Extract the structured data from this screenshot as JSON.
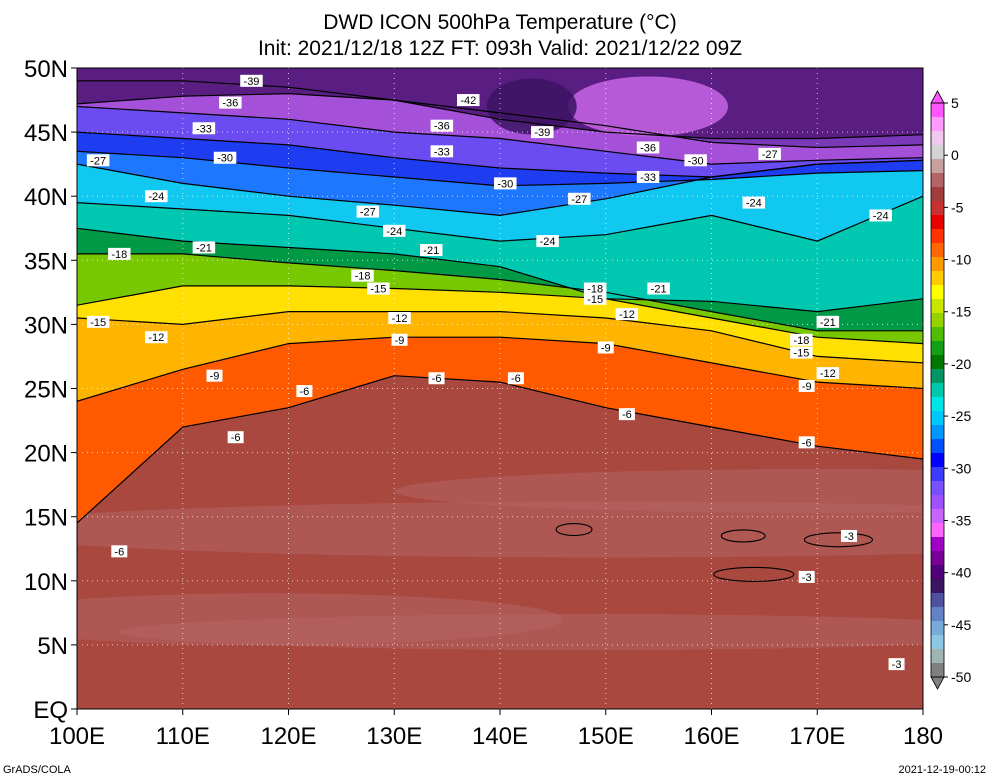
{
  "title_line1": "DWD ICON 500hPa Temperature (°C)",
  "title_line2": "Init: 2021/12/18 12Z  FT: 093h  Valid: 2021/12/22 09Z",
  "footer_left": "GrADS/COLA",
  "footer_right": "2021-12-19-00:12",
  "chart_data": {
    "type": "heatmap",
    "x_axis": {
      "range": [
        100,
        180
      ],
      "ticks": [
        100,
        110,
        120,
        130,
        140,
        150,
        160,
        170,
        180
      ],
      "tick_labels": [
        "100E",
        "110E",
        "120E",
        "130E",
        "140E",
        "150E",
        "160E",
        "170E",
        "180"
      ]
    },
    "y_axis": {
      "range": [
        0,
        50
      ],
      "ticks": [
        0,
        5,
        10,
        15,
        20,
        25,
        30,
        35,
        40,
        45,
        50
      ],
      "tick_labels": [
        "EQ",
        "5N",
        "10N",
        "15N",
        "20N",
        "25N",
        "30N",
        "35N",
        "40N",
        "45N",
        "50N"
      ]
    },
    "grid": true,
    "colorbar": {
      "labels": [
        5,
        0,
        -5,
        -10,
        -15,
        -20,
        -25,
        -30,
        -35,
        -40,
        -45,
        -50
      ],
      "colors": [
        "#ff55ff",
        "#ff9aff",
        "#f0c8f0",
        "#d4d4d4",
        "#c8a0a0",
        "#b46464",
        "#a03c3c",
        "#c83232",
        "#e60000",
        "#ff3300",
        "#ff6600",
        "#ff9900",
        "#ffcc00",
        "#ffff00",
        "#c8e600",
        "#96d200",
        "#50be00",
        "#14a014",
        "#007800",
        "#009664",
        "#00c8aa",
        "#00e6e6",
        "#00c8ff",
        "#0096ff",
        "#0050ff",
        "#0000ff",
        "#3c3cff",
        "#7850ff",
        "#a050ff",
        "#c864ff",
        "#ff64ff",
        "#a000c8",
        "#780096",
        "#500078",
        "#3c1464",
        "#5050a0",
        "#6482c8",
        "#78aadc",
        "#8cc8e6",
        "#a0b4b4",
        "#808080"
      ]
    },
    "isotherms": [
      {
        "value": -42,
        "lats": [
          47.2,
          47.8,
          48.0,
          47.5,
          46.0,
          45.0,
          44.5,
          44.5,
          44.8
        ]
      },
      {
        "value": -39,
        "lats": [
          49.0,
          49.0,
          48.5,
          47.5,
          46.5,
          45.5,
          44.2,
          43.8,
          44.0
        ]
      },
      {
        "value": -36,
        "lats": [
          47.0,
          46.5,
          46.0,
          45.0,
          44.5,
          43.5,
          42.5,
          42.8,
          43.0
        ]
      },
      {
        "value": -33,
        "lats": [
          45.0,
          44.5,
          44.0,
          43.0,
          42.2,
          41.8,
          41.5,
          42.5,
          42.8
        ]
      },
      {
        "value": -30,
        "lats": [
          43.5,
          43.0,
          42.2,
          41.5,
          40.8,
          41.0,
          41.3,
          41.8,
          42.0
        ]
      },
      {
        "value": -27,
        "lats": [
          42.5,
          41.0,
          40.0,
          39.3,
          38.5,
          39.8,
          41.5,
          42.5,
          42.8
        ]
      },
      {
        "value": -24,
        "lats": [
          39.5,
          39.0,
          38.5,
          37.5,
          36.5,
          37.0,
          38.5,
          36.5,
          40.0
        ]
      },
      {
        "value": -21,
        "lats": [
          37.5,
          36.5,
          36.0,
          35.5,
          34.5,
          32.0,
          31.8,
          31.0,
          32.0
        ]
      },
      {
        "value": -18,
        "lats": [
          35.5,
          35.5,
          34.8,
          34.2,
          33.5,
          32.5,
          31.0,
          29.5,
          29.5
        ]
      },
      {
        "value": -15,
        "lats": [
          31.5,
          33.0,
          33.0,
          32.8,
          32.5,
          32.0,
          30.5,
          29.0,
          28.5
        ]
      },
      {
        "value": -12,
        "lats": [
          30.5,
          30.0,
          31.0,
          31.0,
          31.0,
          30.5,
          29.5,
          27.5,
          27.0
        ]
      },
      {
        "value": -9,
        "lats": [
          24.0,
          26.5,
          28.5,
          29.0,
          29.0,
          28.5,
          27.0,
          25.5,
          25.0
        ]
      },
      {
        "value": -6,
        "lats": [
          14.5,
          22.0,
          23.5,
          26.0,
          25.5,
          23.5,
          22.0,
          20.5,
          19.5
        ]
      },
      {
        "value": -3,
        "lats": [
          null,
          null,
          null,
          null,
          null,
          null,
          null,
          null,
          3.5
        ]
      }
    ],
    "contour_labels": [
      {
        "text": "-39",
        "lon": 116.5,
        "lat": 49.0
      },
      {
        "text": "-36",
        "lon": 114.5,
        "lat": 47.3
      },
      {
        "text": "-42",
        "lon": 137.0,
        "lat": 47.5
      },
      {
        "text": "-39",
        "lon": 144.0,
        "lat": 45.0
      },
      {
        "text": "-33",
        "lon": 112.0,
        "lat": 45.3
      },
      {
        "text": "-36",
        "lon": 134.5,
        "lat": 45.5
      },
      {
        "text": "-36",
        "lon": 154.0,
        "lat": 43.8
      },
      {
        "text": "-33",
        "lon": 154.0,
        "lat": 41.5
      },
      {
        "text": "-30",
        "lon": 114.0,
        "lat": 43.0
      },
      {
        "text": "-33",
        "lon": 134.5,
        "lat": 43.5
      },
      {
        "text": "-30",
        "lon": 158.5,
        "lat": 42.8
      },
      {
        "text": "-27",
        "lon": 102.0,
        "lat": 42.8
      },
      {
        "text": "-27",
        "lon": 165.5,
        "lat": 43.3
      },
      {
        "text": "-30",
        "lon": 140.5,
        "lat": 41.0
      },
      {
        "text": "-24",
        "lon": 107.5,
        "lat": 40.0
      },
      {
        "text": "-27",
        "lon": 127.5,
        "lat": 38.8
      },
      {
        "text": "-27",
        "lon": 147.5,
        "lat": 39.8
      },
      {
        "text": "-24",
        "lon": 164.0,
        "lat": 39.5
      },
      {
        "text": "-24",
        "lon": 176.0,
        "lat": 38.5
      },
      {
        "text": "-24",
        "lon": 130.0,
        "lat": 37.3
      },
      {
        "text": "-24",
        "lon": 144.5,
        "lat": 36.5
      },
      {
        "text": "-18",
        "lon": 104.0,
        "lat": 35.5
      },
      {
        "text": "-21",
        "lon": 112.0,
        "lat": 36.0
      },
      {
        "text": "-21",
        "lon": 133.5,
        "lat": 35.8
      },
      {
        "text": "-18",
        "lon": 127.0,
        "lat": 33.8
      },
      {
        "text": "-15",
        "lon": 128.5,
        "lat": 32.8
      },
      {
        "text": "-18",
        "lon": 149.0,
        "lat": 32.8
      },
      {
        "text": "-15",
        "lon": 149.0,
        "lat": 32.0
      },
      {
        "text": "-21",
        "lon": 155.0,
        "lat": 32.8
      },
      {
        "text": "-15",
        "lon": 102.0,
        "lat": 30.2
      },
      {
        "text": "-12",
        "lon": 130.5,
        "lat": 30.5
      },
      {
        "text": "-12",
        "lon": 152.0,
        "lat": 30.8
      },
      {
        "text": "-21",
        "lon": 171.0,
        "lat": 30.2
      },
      {
        "text": "-12",
        "lon": 107.5,
        "lat": 29.0
      },
      {
        "text": "-9",
        "lon": 130.5,
        "lat": 28.8
      },
      {
        "text": "-9",
        "lon": 150.0,
        "lat": 28.2
      },
      {
        "text": "-18",
        "lon": 168.5,
        "lat": 28.8
      },
      {
        "text": "-15",
        "lon": 168.5,
        "lat": 27.8
      },
      {
        "text": "-6",
        "lon": 141.5,
        "lat": 25.8
      },
      {
        "text": "-9",
        "lon": 113.0,
        "lat": 26.0
      },
      {
        "text": "-12",
        "lon": 171.0,
        "lat": 26.2
      },
      {
        "text": "-9",
        "lon": 169.0,
        "lat": 25.2
      },
      {
        "text": "-6",
        "lon": 121.5,
        "lat": 24.8
      },
      {
        "text": "-6",
        "lon": 134.0,
        "lat": 25.8
      },
      {
        "text": "-6",
        "lon": 152.0,
        "lat": 23.0
      },
      {
        "text": "-6",
        "lon": 115.0,
        "lat": 21.2
      },
      {
        "text": "-6",
        "lon": 169.0,
        "lat": 20.8
      },
      {
        "text": "-6",
        "lon": 104.0,
        "lat": 12.3
      },
      {
        "text": "-3",
        "lon": 173.0,
        "lat": 13.5
      },
      {
        "text": "-3",
        "lon": 169.0,
        "lat": 10.3
      },
      {
        "text": "-3",
        "lon": 177.5,
        "lat": 3.5
      }
    ],
    "regions": [
      {
        "name": "tropical-warm",
        "color": "#a03c3c"
      },
      {
        "name": "warm-patch",
        "color": "#b46464"
      }
    ]
  }
}
